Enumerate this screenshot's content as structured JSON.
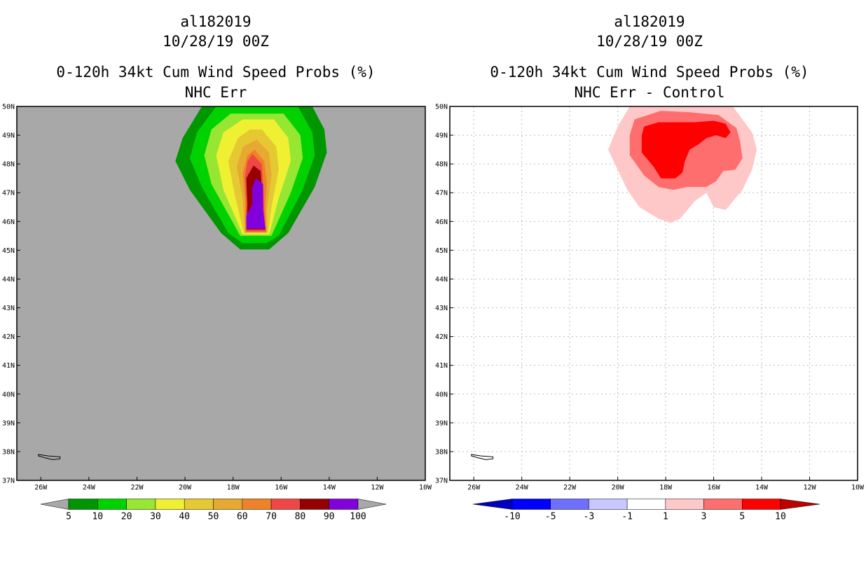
{
  "chart_data": [
    {
      "type": "contour-map",
      "title_lines": [
        "al182019",
        "10/28/19 00Z",
        "0-120h 34kt Cum Wind Speed Probs (%)",
        "NHC Err"
      ],
      "x_ticks": [
        "26W",
        "24W",
        "22W",
        "20W",
        "18W",
        "16W",
        "14W",
        "12W",
        "10W"
      ],
      "y_ticks": [
        "37N",
        "38N",
        "39N",
        "40N",
        "41N",
        "42N",
        "43N",
        "44N",
        "45N",
        "46N",
        "47N",
        "48N",
        "49N",
        "50N"
      ],
      "lon_range": [
        -27,
        -10
      ],
      "lat_range": [
        37,
        50
      ],
      "background_color": "#a8a8a8",
      "colorbar": {
        "labels": [
          "5",
          "10",
          "20",
          "30",
          "40",
          "50",
          "60",
          "70",
          "80",
          "90",
          "100"
        ],
        "colors": [
          "#009600",
          "#00d200",
          "#96e632",
          "#f0f032",
          "#e6c832",
          "#e6aa32",
          "#ef8228",
          "#f04646",
          "#960000",
          "#8200dc"
        ]
      },
      "contours": [
        {
          "level": 5,
          "color": "#009600",
          "points": [
            [
              -14.7,
              50
            ],
            [
              -14.2,
              49.2
            ],
            [
              -14.1,
              48.4
            ],
            [
              -14.6,
              47.2
            ],
            [
              -15.7,
              45.6
            ],
            [
              -16.5,
              45.03
            ],
            [
              -17.7,
              45.03
            ],
            [
              -18.5,
              45.6
            ],
            [
              -19.8,
              47.1
            ],
            [
              -20.4,
              48.1
            ],
            [
              -20.1,
              48.9
            ],
            [
              -19.3,
              50
            ]
          ]
        },
        {
          "level": 10,
          "color": "#00d200",
          "points": [
            [
              -15.3,
              50
            ],
            [
              -14.7,
              49.1
            ],
            [
              -14.6,
              48.3
            ],
            [
              -15.1,
              47.1
            ],
            [
              -16.1,
              45.5
            ],
            [
              -16.6,
              45.25
            ],
            [
              -17.6,
              45.25
            ],
            [
              -18.2,
              45.6
            ],
            [
              -19.3,
              47.2
            ],
            [
              -19.8,
              48.2
            ],
            [
              -19.5,
              49.1
            ],
            [
              -18.7,
              50
            ]
          ]
        },
        {
          "level": 20,
          "color": "#96e632",
          "points": [
            [
              -15.9,
              49.75
            ],
            [
              -15.2,
              49
            ],
            [
              -15.1,
              48.2
            ],
            [
              -15.6,
              47
            ],
            [
              -16.4,
              45.5
            ],
            [
              -17.7,
              45.5
            ],
            [
              -18.9,
              47.3
            ],
            [
              -19.2,
              48.3
            ],
            [
              -18.9,
              49.2
            ],
            [
              -18.1,
              49.75
            ]
          ]
        },
        {
          "level": 30,
          "color": "#f0f032",
          "points": [
            [
              -16.3,
              49.55
            ],
            [
              -15.7,
              48.9
            ],
            [
              -15.6,
              48.1
            ],
            [
              -16.1,
              46.8
            ],
            [
              -16.5,
              45.55
            ],
            [
              -17.6,
              45.55
            ],
            [
              -18.4,
              47.1
            ],
            [
              -18.7,
              48.3
            ],
            [
              -18.4,
              49.1
            ],
            [
              -17.6,
              49.55
            ]
          ]
        },
        {
          "level": 40,
          "color": "#e6c832",
          "points": [
            [
              -16.8,
              49.2
            ],
            [
              -16.2,
              48.6
            ],
            [
              -16.1,
              47.8
            ],
            [
              -16.4,
              46.5
            ],
            [
              -16.55,
              45.6
            ],
            [
              -17.55,
              45.6
            ],
            [
              -17.95,
              47.0
            ],
            [
              -18.2,
              48.1
            ],
            [
              -17.8,
              48.9
            ],
            [
              -17.3,
              49.2
            ]
          ]
        },
        {
          "level": 50,
          "color": "#e6aa32",
          "points": [
            [
              -17,
              48.85
            ],
            [
              -16.5,
              48.4
            ],
            [
              -16.4,
              47.6
            ],
            [
              -16.6,
              46.4
            ],
            [
              -16.6,
              45.6
            ],
            [
              -17.5,
              45.6
            ],
            [
              -17.6,
              46.8
            ],
            [
              -17.85,
              47.9
            ],
            [
              -17.6,
              48.6
            ]
          ]
        },
        {
          "level": 60,
          "color": "#ef8228",
          "points": [
            [
              -17.1,
              48.5
            ],
            [
              -16.7,
              48.1
            ],
            [
              -16.6,
              47.4
            ],
            [
              -16.65,
              46.4
            ],
            [
              -16.6,
              45.65
            ],
            [
              -17.5,
              45.65
            ],
            [
              -17.5,
              46.7
            ],
            [
              -17.6,
              47.7
            ],
            [
              -17.4,
              48.3
            ]
          ]
        },
        {
          "level": 70,
          "color": "#f04646",
          "points": [
            [
              -17.2,
              48.35
            ],
            [
              -16.8,
              48
            ],
            [
              -16.75,
              47.3
            ],
            [
              -16.7,
              46.3
            ],
            [
              -16.65,
              45.65
            ],
            [
              -17.45,
              45.65
            ],
            [
              -17.45,
              46.6
            ],
            [
              -17.5,
              47.6
            ],
            [
              -17.4,
              48.1
            ]
          ]
        },
        {
          "level": 80,
          "color": "#960000",
          "points": [
            [
              -17.15,
              47.95
            ],
            [
              -16.85,
              47.75
            ],
            [
              -16.8,
              47.1
            ],
            [
              -16.75,
              46.3
            ],
            [
              -16.65,
              45.72
            ],
            [
              -17.45,
              45.72
            ],
            [
              -17.4,
              46.6
            ],
            [
              -17.45,
              47.5
            ]
          ]
        },
        {
          "level": 90,
          "color": "#8200dc",
          "points": [
            [
              -17.05,
              47.5
            ],
            [
              -16.75,
              47.3
            ],
            [
              -16.75,
              46.4
            ],
            [
              -16.65,
              45.75
            ],
            [
              -17.45,
              45.75
            ],
            [
              -17.45,
              46.2
            ],
            [
              -17.2,
              46.6
            ],
            [
              -17.2,
              47.2
            ]
          ]
        }
      ],
      "coastline": [
        [
          -26.1,
          37.9
        ],
        [
          -25.7,
          37.85
        ],
        [
          -25.2,
          37.82
        ],
        [
          -25.2,
          37.75
        ],
        [
          -25.5,
          37.72
        ],
        [
          -25.8,
          37.78
        ],
        [
          -26.1,
          37.85
        ]
      ]
    },
    {
      "type": "contour-map",
      "title_lines": [
        "al182019",
        "10/28/19 00Z",
        "0-120h 34kt Cum Wind Speed Probs (%)",
        "NHC Err - Control"
      ],
      "x_ticks": [
        "26W",
        "24W",
        "22W",
        "20W",
        "18W",
        "16W",
        "14W",
        "12W",
        "10W"
      ],
      "y_ticks": [
        "37N",
        "38N",
        "39N",
        "40N",
        "41N",
        "42N",
        "43N",
        "44N",
        "45N",
        "46N",
        "47N",
        "48N",
        "49N",
        "50N"
      ],
      "lon_range": [
        -27,
        -10
      ],
      "lat_range": [
        37,
        50
      ],
      "background_color": "#ffffff",
      "gridlines": true,
      "colorbar": {
        "labels": [
          "-10",
          "-5",
          "-3",
          "-1",
          "1",
          "3",
          "5",
          "10"
        ],
        "colors": [
          "#0000be",
          "#0000ff",
          "#6e6eff",
          "#c8c8ff",
          "#ffffff",
          "#ffc8c8",
          "#ff6e6e",
          "#ff0000",
          "#be0000"
        ]
      },
      "contours": [
        {
          "level": 1,
          "color": "#ffc8c8",
          "points": [
            [
              -19.5,
              50
            ],
            [
              -15.2,
              50
            ],
            [
              -14.4,
              49.1
            ],
            [
              -14.2,
              48.5
            ],
            [
              -14.4,
              47.8
            ],
            [
              -14.8,
              47.1
            ],
            [
              -15.5,
              46.4
            ],
            [
              -16,
              46.5
            ],
            [
              -16.3,
              47
            ],
            [
              -16.8,
              46.7
            ],
            [
              -17.4,
              46.1
            ],
            [
              -17.8,
              45.95
            ],
            [
              -18.3,
              46.1
            ],
            [
              -19.1,
              46.5
            ],
            [
              -19.6,
              47.1
            ],
            [
              -20.0,
              47.8
            ],
            [
              -20.4,
              48.5
            ],
            [
              -20.0,
              49.3
            ]
          ]
        },
        {
          "level": 3,
          "color": "#ff6e6e",
          "points": [
            [
              -19.3,
              49.55
            ],
            [
              -18.2,
              49.85
            ],
            [
              -17,
              49.8
            ],
            [
              -15.8,
              49.7
            ],
            [
              -15.05,
              49.25
            ],
            [
              -14.9,
              48.8
            ],
            [
              -14.8,
              48.2
            ],
            [
              -15.1,
              47.8
            ],
            [
              -15.6,
              47.75
            ],
            [
              -15.9,
              47.4
            ],
            [
              -16.3,
              47.2
            ],
            [
              -16.7,
              47.2
            ],
            [
              -17.1,
              47.2
            ],
            [
              -17.7,
              47.1
            ],
            [
              -18.3,
              47.2
            ],
            [
              -18.9,
              47.6
            ],
            [
              -19.5,
              48.3
            ],
            [
              -19.5,
              49.0
            ]
          ]
        },
        {
          "level": 5,
          "color": "#ff0000",
          "points": [
            [
              -18.9,
              49.3
            ],
            [
              -18.3,
              49.45
            ],
            [
              -17.5,
              49.45
            ],
            [
              -16.8,
              49.45
            ],
            [
              -16.0,
              49.5
            ],
            [
              -15.5,
              49.4
            ],
            [
              -15.3,
              49.1
            ],
            [
              -15.5,
              48.9
            ],
            [
              -15.9,
              49.0
            ],
            [
              -16.3,
              48.9
            ],
            [
              -16.6,
              48.7
            ],
            [
              -17.0,
              48.5
            ],
            [
              -17.2,
              48.1
            ],
            [
              -17.3,
              47.7
            ],
            [
              -17.6,
              47.5
            ],
            [
              -18.2,
              47.5
            ],
            [
              -18.5,
              47.9
            ],
            [
              -19.0,
              48.4
            ],
            [
              -19.0,
              49.0
            ]
          ]
        },
        {
          "level": 10,
          "color": "#be0000",
          "points": []
        }
      ],
      "coastline": [
        [
          -26.1,
          37.9
        ],
        [
          -25.7,
          37.85
        ],
        [
          -25.2,
          37.82
        ],
        [
          -25.2,
          37.75
        ],
        [
          -25.5,
          37.72
        ],
        [
          -25.8,
          37.78
        ],
        [
          -26.1,
          37.85
        ]
      ]
    }
  ]
}
